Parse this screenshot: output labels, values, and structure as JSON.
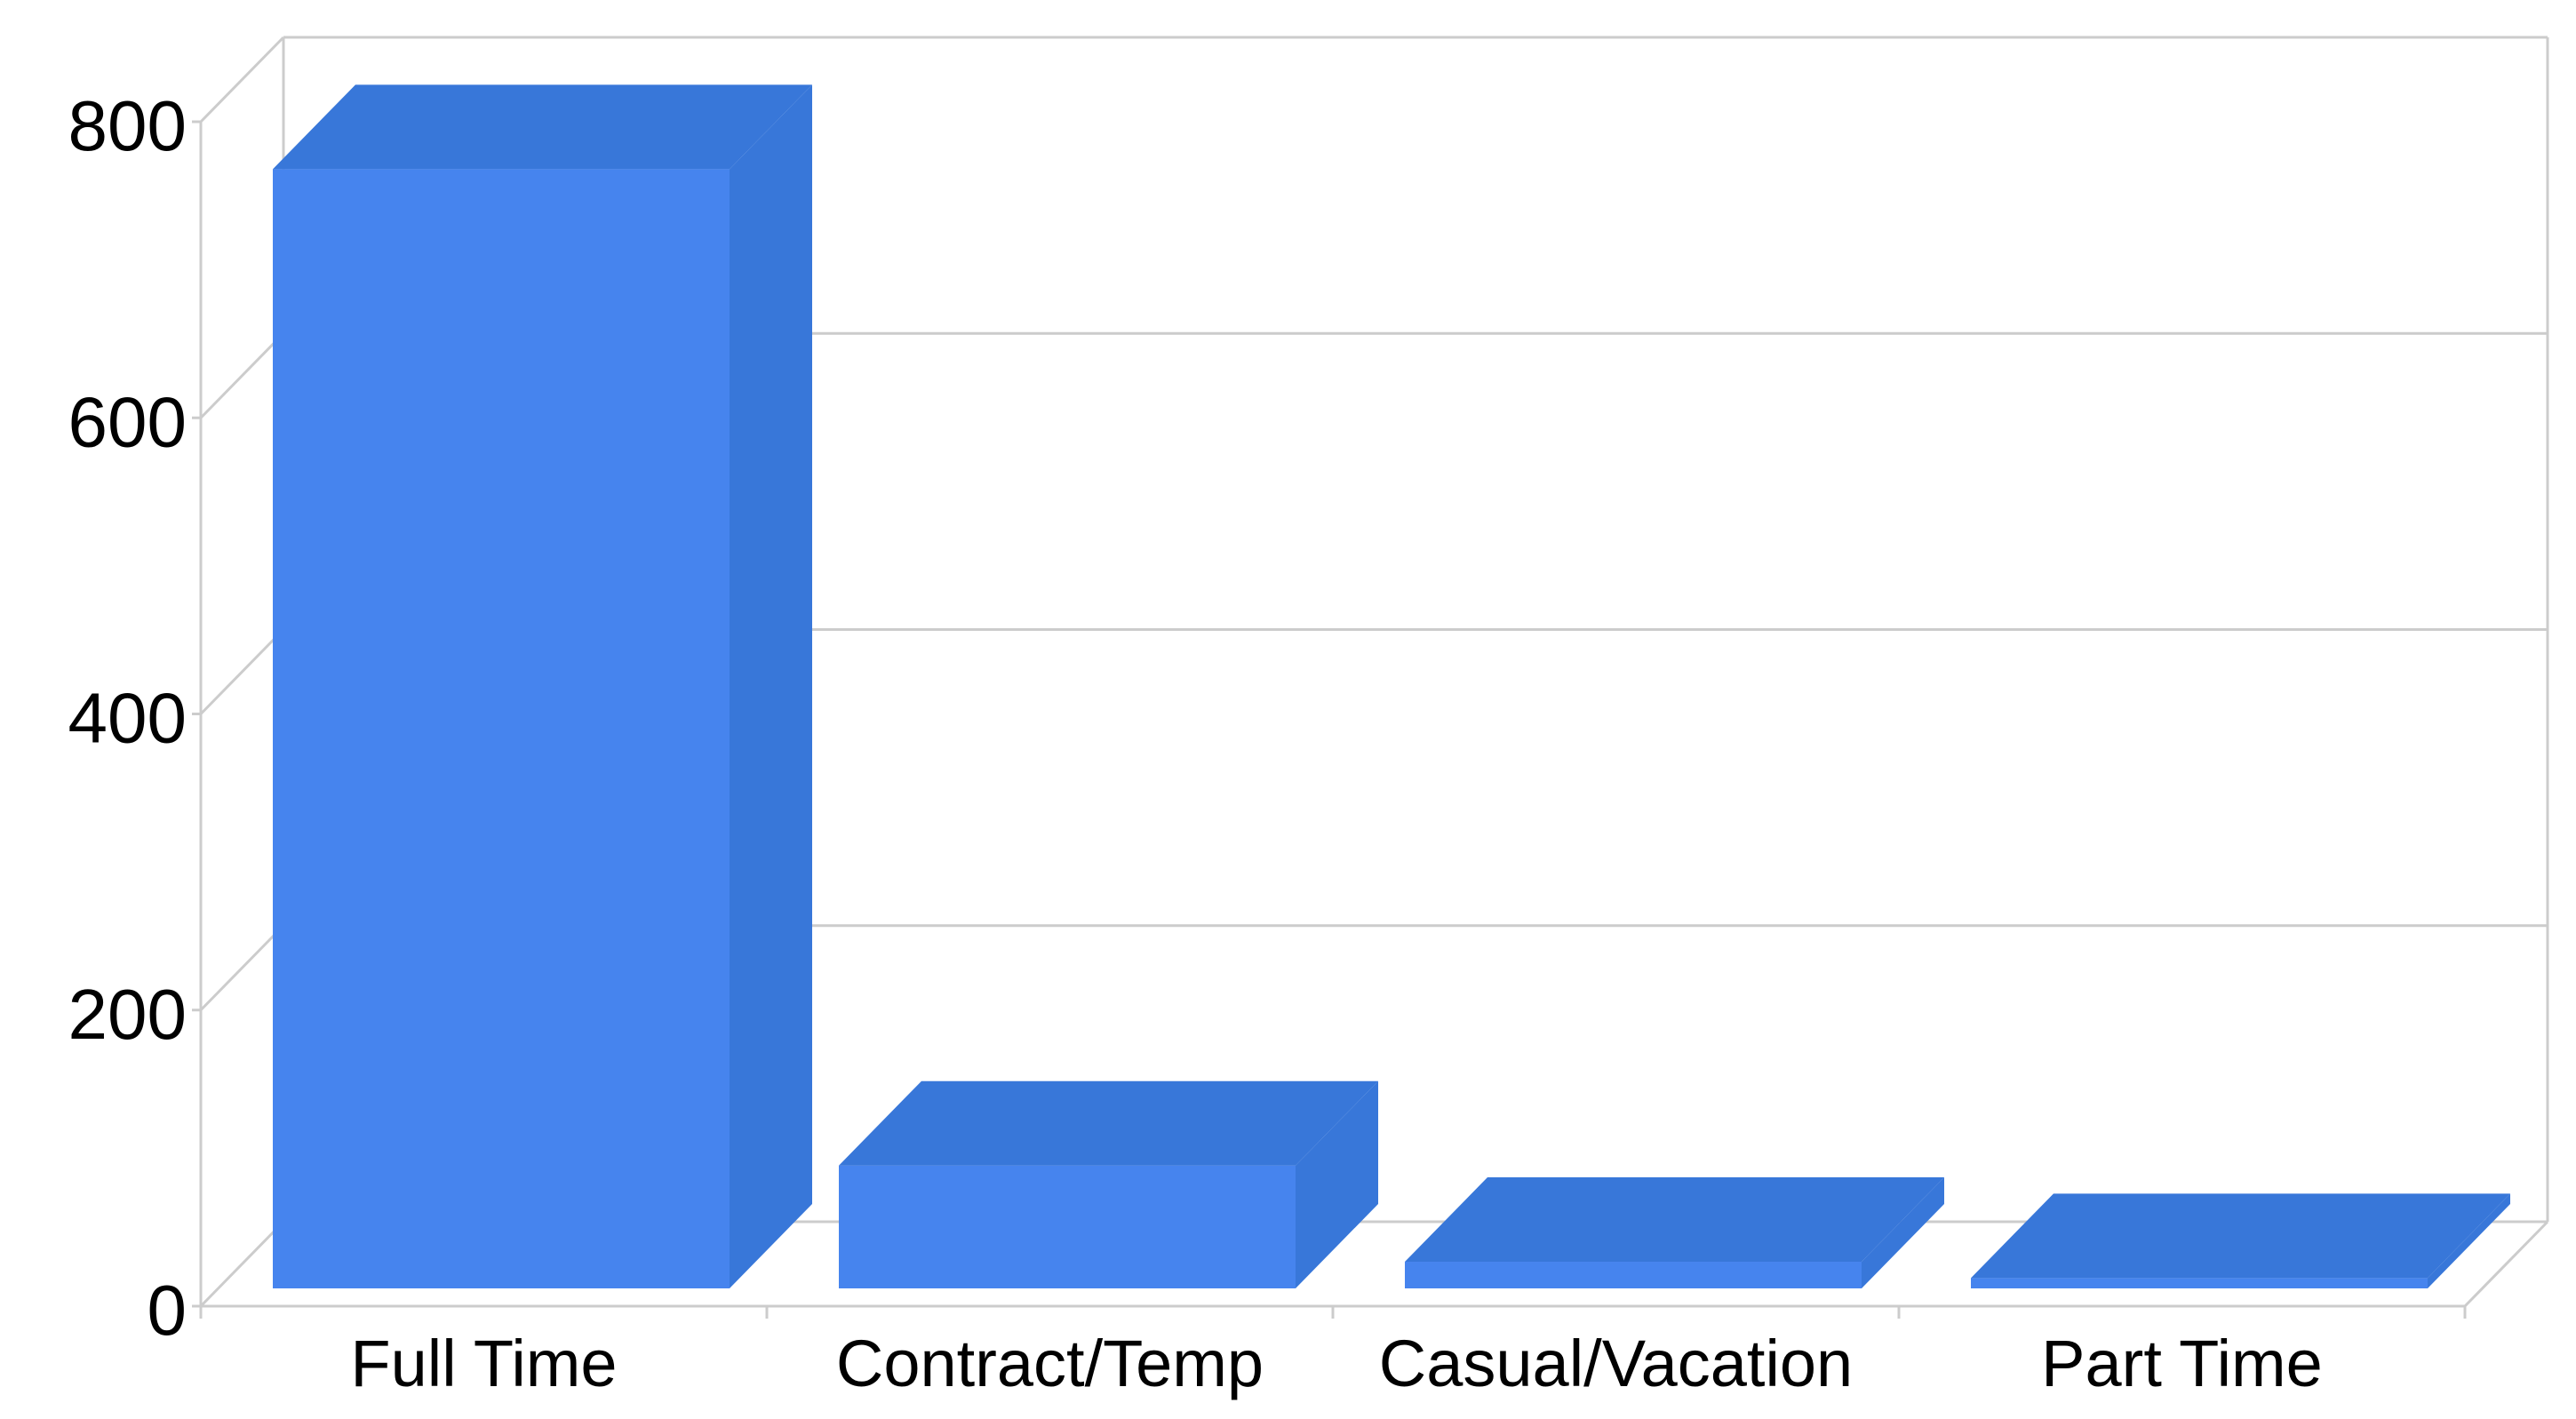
{
  "chart_data": {
    "type": "bar",
    "style": "3d",
    "categories": [
      "Full Time",
      "Contract/Temp",
      "Casual/Vacation",
      "Part Time"
    ],
    "values": [
      768,
      95,
      30,
      19
    ],
    "title": "",
    "xlabel": "",
    "ylabel": "",
    "ylim": [
      0,
      800
    ],
    "yticks": [
      "0",
      "200",
      "400",
      "600",
      "800"
    ],
    "grid": true,
    "legend": "none"
  },
  "colors": {
    "bar_front": "#4684ee",
    "bar_side": "#3877d9",
    "grid": "#cccccc",
    "text": "#000000"
  }
}
